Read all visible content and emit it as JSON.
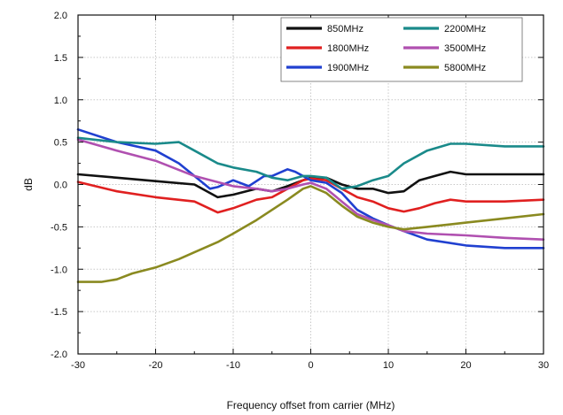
{
  "chart_data": {
    "type": "line",
    "title": "",
    "xlabel": "Frequency offset from carrier (MHz)",
    "ylabel": "dB",
    "xlim": [
      -30,
      30
    ],
    "ylim": [
      -2.0,
      2.0
    ],
    "xticks": [
      "-30",
      "-20",
      "-10",
      "0",
      "10",
      "20",
      "30"
    ],
    "yticks": [
      "2.0",
      "1.5",
      "1.0",
      "0.5",
      "0.0",
      "-0.5",
      "-1.0",
      "-1.5",
      "-2.0"
    ],
    "grid": true,
    "legend_position": "top-right",
    "series": [
      {
        "name": "850MHz",
        "color": "#111111",
        "x": [
          -30,
          -25,
          -20,
          -15,
          -12,
          -10,
          -7,
          -5,
          -3,
          -1,
          0,
          2,
          4,
          6,
          8,
          10,
          12,
          14,
          16,
          18,
          20,
          25,
          30
        ],
        "y": [
          0.12,
          0.08,
          0.04,
          0.0,
          -0.15,
          -0.12,
          -0.05,
          -0.08,
          -0.02,
          0.05,
          0.08,
          0.08,
          0.0,
          -0.05,
          -0.05,
          -0.1,
          -0.08,
          0.05,
          0.1,
          0.15,
          0.12,
          0.12,
          0.12
        ]
      },
      {
        "name": "1800MHz",
        "color": "#e02020",
        "x": [
          -30,
          -25,
          -20,
          -15,
          -12,
          -10,
          -7,
          -5,
          -3,
          -1,
          0,
          2,
          4,
          6,
          8,
          10,
          12,
          14,
          16,
          18,
          20,
          25,
          30
        ],
        "y": [
          0.03,
          -0.08,
          -0.15,
          -0.2,
          -0.33,
          -0.28,
          -0.18,
          -0.15,
          -0.05,
          0.05,
          0.07,
          0.05,
          -0.05,
          -0.15,
          -0.2,
          -0.28,
          -0.32,
          -0.28,
          -0.22,
          -0.18,
          -0.2,
          -0.2,
          -0.18
        ]
      },
      {
        "name": "1900MHz",
        "color": "#2040d0",
        "x": [
          -30,
          -25,
          -20,
          -17,
          -15,
          -13,
          -12,
          -10,
          -8,
          -6,
          -5,
          -3,
          -2,
          0,
          2,
          4,
          6,
          8,
          10,
          12,
          15,
          20,
          25,
          30
        ],
        "y": [
          0.65,
          0.5,
          0.4,
          0.25,
          0.1,
          -0.05,
          -0.03,
          0.05,
          -0.02,
          0.1,
          0.1,
          0.18,
          0.15,
          0.05,
          0.02,
          -0.1,
          -0.3,
          -0.4,
          -0.48,
          -0.55,
          -0.65,
          -0.72,
          -0.75,
          -0.75
        ]
      },
      {
        "name": "2200MHz",
        "color": "#1a8a8a",
        "x": [
          -30,
          -25,
          -20,
          -17,
          -15,
          -12,
          -10,
          -7,
          -5,
          -3,
          -1,
          0,
          2,
          4,
          6,
          8,
          10,
          12,
          15,
          18,
          20,
          25,
          30
        ],
        "y": [
          0.55,
          0.5,
          0.48,
          0.5,
          0.4,
          0.25,
          0.2,
          0.15,
          0.08,
          0.05,
          0.1,
          0.1,
          0.08,
          -0.05,
          -0.02,
          0.05,
          0.1,
          0.25,
          0.4,
          0.48,
          0.48,
          0.45,
          0.45
        ]
      },
      {
        "name": "3500MHz",
        "color": "#b050b0",
        "x": [
          -30,
          -25,
          -20,
          -15,
          -10,
          -7,
          -5,
          -3,
          -1,
          0,
          2,
          4,
          6,
          8,
          10,
          12,
          15,
          20,
          25,
          30
        ],
        "y": [
          0.53,
          0.4,
          0.28,
          0.1,
          -0.02,
          -0.05,
          -0.08,
          -0.05,
          0.0,
          0.02,
          -0.05,
          -0.2,
          -0.35,
          -0.42,
          -0.48,
          -0.55,
          -0.58,
          -0.6,
          -0.63,
          -0.65
        ]
      },
      {
        "name": "5800MHz",
        "color": "#8a8a20",
        "x": [
          -30,
          -27,
          -25,
          -23,
          -20,
          -17,
          -15,
          -12,
          -10,
          -7,
          -5,
          -3,
          -1,
          0,
          2,
          4,
          6,
          8,
          10,
          12,
          15,
          20,
          25,
          30
        ],
        "y": [
          -1.15,
          -1.15,
          -1.12,
          -1.05,
          -0.98,
          -0.88,
          -0.8,
          -0.68,
          -0.58,
          -0.42,
          -0.3,
          -0.18,
          -0.05,
          -0.02,
          -0.1,
          -0.25,
          -0.38,
          -0.45,
          -0.5,
          -0.53,
          -0.5,
          -0.45,
          -0.4,
          -0.35
        ]
      }
    ]
  }
}
